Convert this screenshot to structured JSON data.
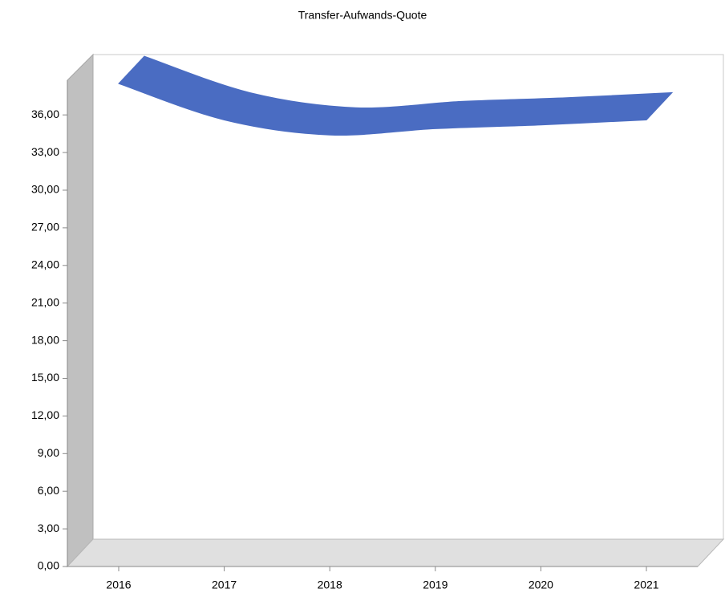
{
  "chart_data": {
    "type": "line",
    "title": "Transfer-Aufwands-Quote",
    "categories": [
      "2016",
      "2017",
      "2018",
      "2019",
      "2020",
      "2021"
    ],
    "series": [
      {
        "name": "Transfer-Aufwands-Quote",
        "color": "#4a6cc2",
        "values": [
          38.5,
          35.6,
          34.4,
          34.9,
          35.2,
          35.6
        ]
      }
    ],
    "ylim": [
      0,
      39
    ],
    "yticks": [
      {
        "value": 0,
        "label": "0,00"
      },
      {
        "value": 3,
        "label": "3,00"
      },
      {
        "value": 6,
        "label": "6,00"
      },
      {
        "value": 9,
        "label": "9,00"
      },
      {
        "value": 12,
        "label": "12,00"
      },
      {
        "value": 15,
        "label": "15,00"
      },
      {
        "value": 18,
        "label": "18,00"
      },
      {
        "value": 21,
        "label": "21,00"
      },
      {
        "value": 24,
        "label": "24,00"
      },
      {
        "value": 27,
        "label": "27,00"
      },
      {
        "value": 30,
        "label": "30,00"
      },
      {
        "value": 33,
        "label": "33,00"
      },
      {
        "value": 36,
        "label": "36,00"
      }
    ],
    "grid": false
  }
}
